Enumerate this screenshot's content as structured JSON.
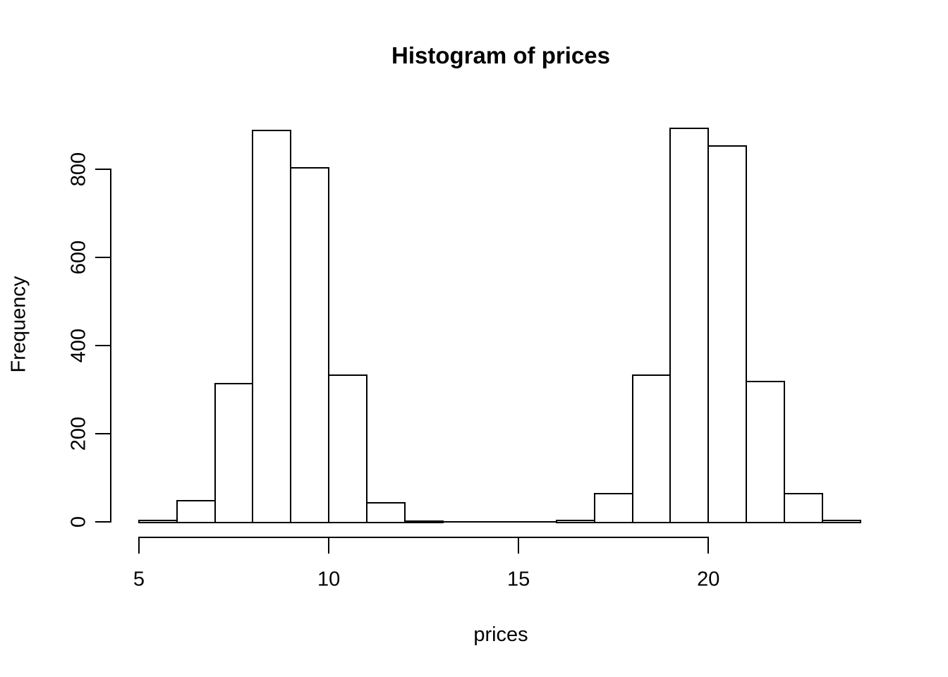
{
  "figure": {
    "background": "#ffffff",
    "foreground": "#000000"
  },
  "chart_data": {
    "type": "bar",
    "kind": "histogram",
    "title": "Histogram of prices",
    "xlabel": "prices",
    "ylabel": "Frequency",
    "bar_fill": "#ffffff",
    "bar_border": "#000000",
    "grid": false,
    "legend": false,
    "xlim": [
      5,
      24
    ],
    "ylim": [
      0,
      800
    ],
    "x_ticks": [
      5,
      10,
      15,
      20
    ],
    "y_ticks": [
      0,
      200,
      400,
      600,
      800
    ],
    "bin_breaks": [
      5,
      6,
      7,
      8,
      9,
      10,
      11,
      12,
      13,
      14,
      15,
      16,
      17,
      18,
      19,
      20,
      21,
      22,
      23,
      24
    ],
    "counts": [
      5,
      50,
      315,
      890,
      805,
      335,
      45,
      3,
      0,
      0,
      0,
      5,
      65,
      335,
      895,
      855,
      320,
      65,
      5
    ]
  }
}
